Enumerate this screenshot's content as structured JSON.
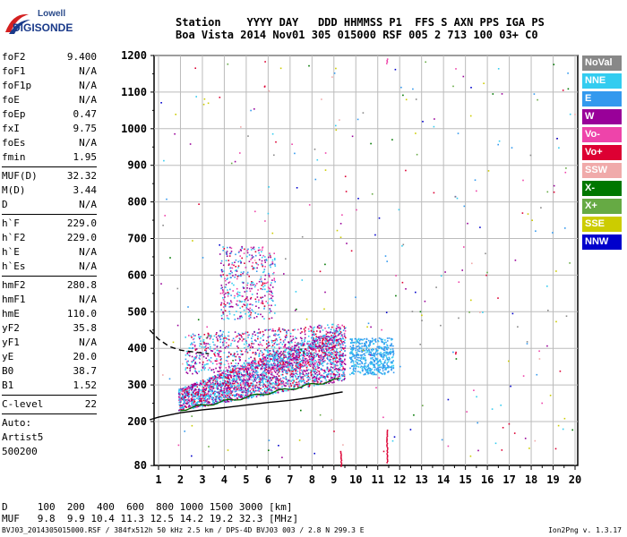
{
  "logo": {
    "line1": "Lowell",
    "line2": "DIGISONDE"
  },
  "header": {
    "line1": "Station    YYYY DAY   DDD HHMMSS P1  FFS S AXN PPS IGA PS",
    "line2": "Boa Vista 2014 Nov01 305 015000 RSF 005 2 713 100 03+ C0"
  },
  "params": {
    "group1": [
      {
        "k": "foF2",
        "v": "9.400"
      },
      {
        "k": "foF1",
        "v": "N/A"
      },
      {
        "k": "foF1p",
        "v": "N/A"
      },
      {
        "k": "foE",
        "v": "N/A"
      },
      {
        "k": "foEp",
        "v": "0.47"
      },
      {
        "k": "fxI",
        "v": "9.75"
      },
      {
        "k": "foEs",
        "v": "N/A"
      },
      {
        "k": "fmin",
        "v": "1.95"
      }
    ],
    "group2": [
      {
        "k": "MUF(D)",
        "v": "32.32"
      },
      {
        "k": "M(D)",
        "v": "3.44"
      },
      {
        "k": "D",
        "v": "N/A"
      }
    ],
    "group3": [
      {
        "k": "h`F",
        "v": "229.0"
      },
      {
        "k": "h`F2",
        "v": "229.0"
      },
      {
        "k": "h`E",
        "v": "N/A"
      },
      {
        "k": "h`Es",
        "v": "N/A"
      }
    ],
    "group4": [
      {
        "k": "hmF2",
        "v": "280.8"
      },
      {
        "k": "hmF1",
        "v": "N/A"
      },
      {
        "k": "hmE",
        "v": "110.0"
      },
      {
        "k": "yF2",
        "v": "35.8"
      },
      {
        "k": "yF1",
        "v": "N/A"
      },
      {
        "k": "yE",
        "v": "20.0"
      },
      {
        "k": "B0",
        "v": "38.7"
      },
      {
        "k": "B1",
        "v": "1.52"
      }
    ],
    "group5": [
      {
        "k": "C-level",
        "v": "22"
      }
    ],
    "tail": [
      "Auto:",
      "Artist5",
      "500200"
    ]
  },
  "chart_data": {
    "type": "scatter",
    "xlim": [
      0.6,
      20.2
    ],
    "ylim": [
      80,
      1200
    ],
    "x_ticks": [
      "1",
      "2",
      "3",
      "4",
      "5",
      "6",
      "7",
      "8",
      "9",
      "10",
      "11",
      "12",
      "13",
      "14",
      "15",
      "16",
      "17",
      "18",
      "19",
      "20"
    ],
    "y_ticks": [
      "80",
      "200",
      "300",
      "400",
      "500",
      "600",
      "700",
      "800",
      "900",
      "1000",
      "1100",
      "1200"
    ],
    "grid": true,
    "profile_lower": [
      [
        0.6,
        205
      ],
      [
        1,
        212
      ],
      [
        2,
        224
      ],
      [
        3,
        232
      ],
      [
        4,
        238
      ],
      [
        5,
        245
      ],
      [
        6,
        252
      ],
      [
        7,
        258
      ],
      [
        8,
        266
      ],
      [
        9,
        277
      ],
      [
        9.4,
        281
      ]
    ],
    "profile_upper": [
      [
        0.6,
        450
      ],
      [
        1,
        425
      ],
      [
        1.5,
        405
      ],
      [
        2,
        395
      ],
      [
        2.6,
        390
      ],
      [
        3.3,
        385
      ]
    ]
  },
  "legend": [
    {
      "label": "NoVal",
      "color": "#888888"
    },
    {
      "label": "NNE",
      "color": "#33ccf0"
    },
    {
      "label": "E",
      "color": "#3399ee"
    },
    {
      "label": "W",
      "color": "#990099"
    },
    {
      "label": "Vo-",
      "color": "#ee44aa"
    },
    {
      "label": "Vo+",
      "color": "#dd0033"
    },
    {
      "label": "SSW",
      "color": "#f0aaaa"
    },
    {
      "label": "X-",
      "color": "#007700"
    },
    {
      "label": "X+",
      "color": "#66aa44"
    },
    {
      "label": "SSE",
      "color": "#cccc00"
    },
    {
      "label": "NNW",
      "color": "#0000cc"
    }
  ],
  "d_table": {
    "line1": "D     100  200  400  600  800 1000 1500 3000 [km]",
    "line2": "MUF   9.8  9.9 10.4 11.3 12.5 14.2 19.2 32.3 [MHz]"
  },
  "footer": "BVJ03_2014305015000.RSF / 384fx512h 50 kHz 2.5 km / DPS-4D BVJ03 003 / 2.8 N 299.3 E",
  "version": "Ion2Png v. 1.3.17"
}
